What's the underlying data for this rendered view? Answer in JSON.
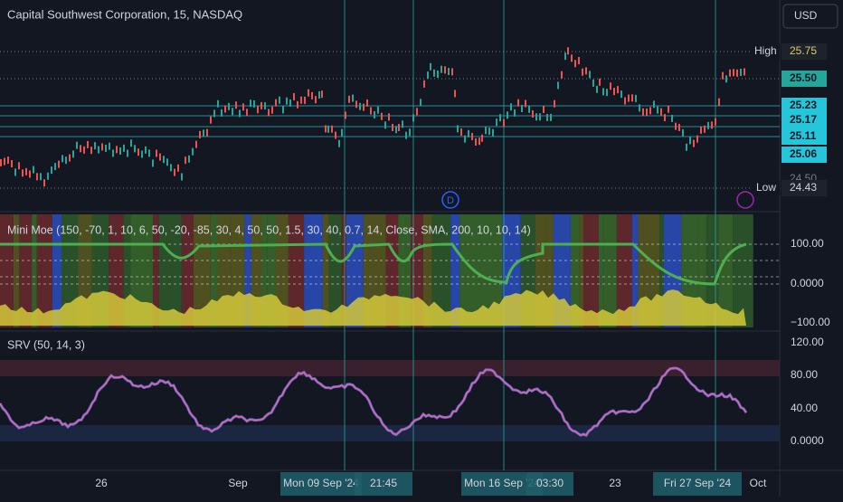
{
  "header": {
    "title": "Capital Southwest Corporation, 15, NASDAQ",
    "currency": "USD"
  },
  "price_axis": {
    "high_label": "High",
    "high": "25.75",
    "last": "25.50",
    "levels": [
      "25.23",
      "25.17",
      "25.11",
      "25.06"
    ],
    "hidden": "24.50",
    "low_label": "Low",
    "low": "24.43",
    "marker": "D"
  },
  "indicator_1": {
    "title": "Mini Moe (150, -70, 1, 10, 6, 50, -20, -85, 30, 4, 50, 50, 1.5, 30, 40, 0.7, 14, Close, SMA, 200, 10, 10, 14)",
    "ticks": [
      "100.00",
      "0.0000",
      "−100.00"
    ]
  },
  "indicator_2": {
    "title": "SRV (50, 14, 3)",
    "ticks": [
      "120.00",
      "80.00",
      "40.00",
      "0.0000"
    ]
  },
  "time_axis": {
    "labels": [
      "26",
      "Sep",
      "23",
      "Oct"
    ],
    "cursors": [
      "Mon 09 Sep '24",
      "21:45",
      "Mon 16 Sep '24",
      "03:30",
      "Fri 27 Sep '24"
    ]
  }
}
